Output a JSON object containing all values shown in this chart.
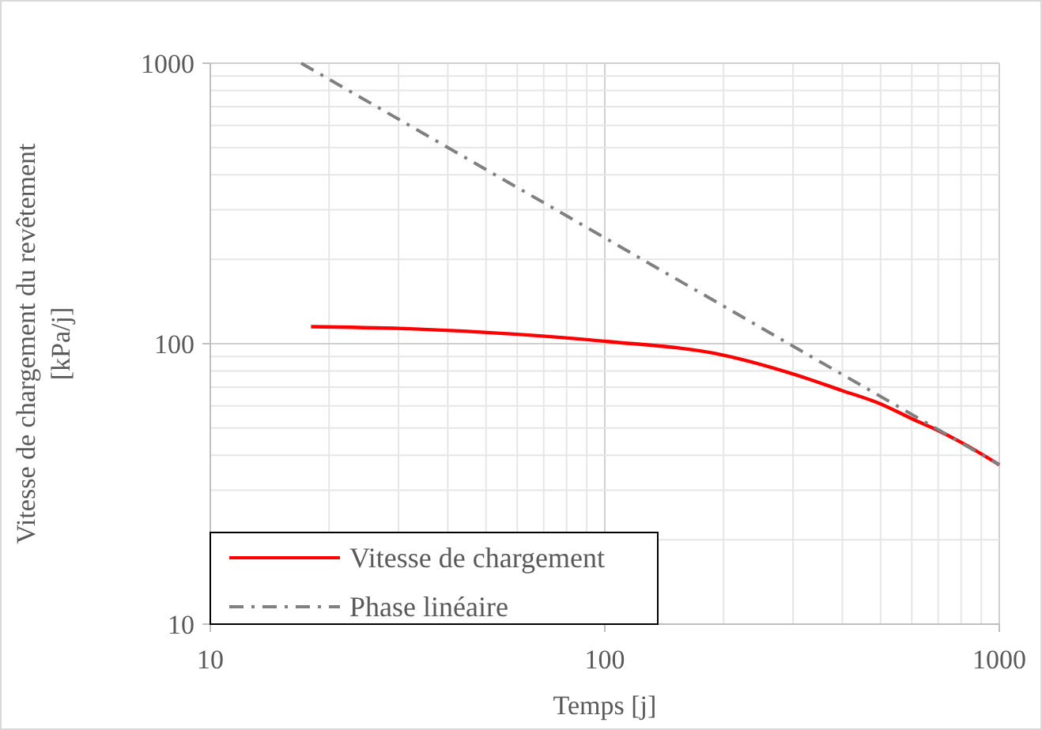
{
  "chart_data": {
    "type": "line",
    "xlabel": "Temps [j]",
    "ylabel": "Vitesse de chargement du revêtement [kPa/j]",
    "log": "xy",
    "grid": true,
    "legend": "bottom left",
    "xlim": [
      10,
      1000
    ],
    "ylim": [
      10,
      1000
    ],
    "xticks": [
      10,
      {
        "value": 20,
        "label": null
      },
      {
        "value": 30,
        "label": null
      },
      {
        "value": 40,
        "label": null
      },
      {
        "value": 50,
        "label": null
      },
      {
        "value": 60,
        "label": null
      },
      {
        "value": 70,
        "label": null
      },
      {
        "value": 80,
        "label": null
      },
      {
        "value": 90,
        "label": null
      },
      100,
      {
        "value": 200,
        "label": null
      },
      {
        "value": 300,
        "label": null
      },
      {
        "value": 400,
        "label": null
      },
      {
        "value": 500,
        "label": null
      },
      {
        "value": 600,
        "label": null
      },
      {
        "value": 700,
        "label": null
      },
      {
        "value": 800,
        "label": null
      },
      {
        "value": 900,
        "label": null
      },
      1000
    ],
    "yticks": [
      10,
      {
        "value": 20,
        "label": null
      },
      {
        "value": 30,
        "label": null
      },
      {
        "value": 40,
        "label": null
      },
      {
        "value": 50,
        "label": null
      },
      {
        "value": 60,
        "label": null
      },
      {
        "value": 70,
        "label": null
      },
      {
        "value": 80,
        "label": null
      },
      {
        "value": 90,
        "label": null
      },
      100,
      {
        "value": 200,
        "label": null
      },
      {
        "value": 300,
        "label": null
      },
      {
        "value": 400,
        "label": null
      },
      {
        "value": 500,
        "label": null
      },
      {
        "value": 600,
        "label": null
      },
      {
        "value": 700,
        "label": null
      },
      {
        "value": 800,
        "label": null
      },
      {
        "value": 900,
        "label": null
      },
      1000
    ],
    "series": [
      {
        "name": "Vitesse de chargement",
        "color": "#ff0000",
        "line_style": "solid",
        "x": [
          18,
          32,
          60,
          100,
          200,
          300,
          400,
          500,
          600,
          700,
          800,
          1000
        ],
        "values": [
          115,
          113,
          108,
          102,
          91,
          78,
          68,
          61,
          54,
          49,
          44.5,
          37
        ]
      },
      {
        "name": "Phase linéaire",
        "color": "#808080",
        "line_style": "dashdot",
        "x": [
          17,
          1000
        ],
        "values": [
          1000,
          37
        ]
      }
    ]
  }
}
